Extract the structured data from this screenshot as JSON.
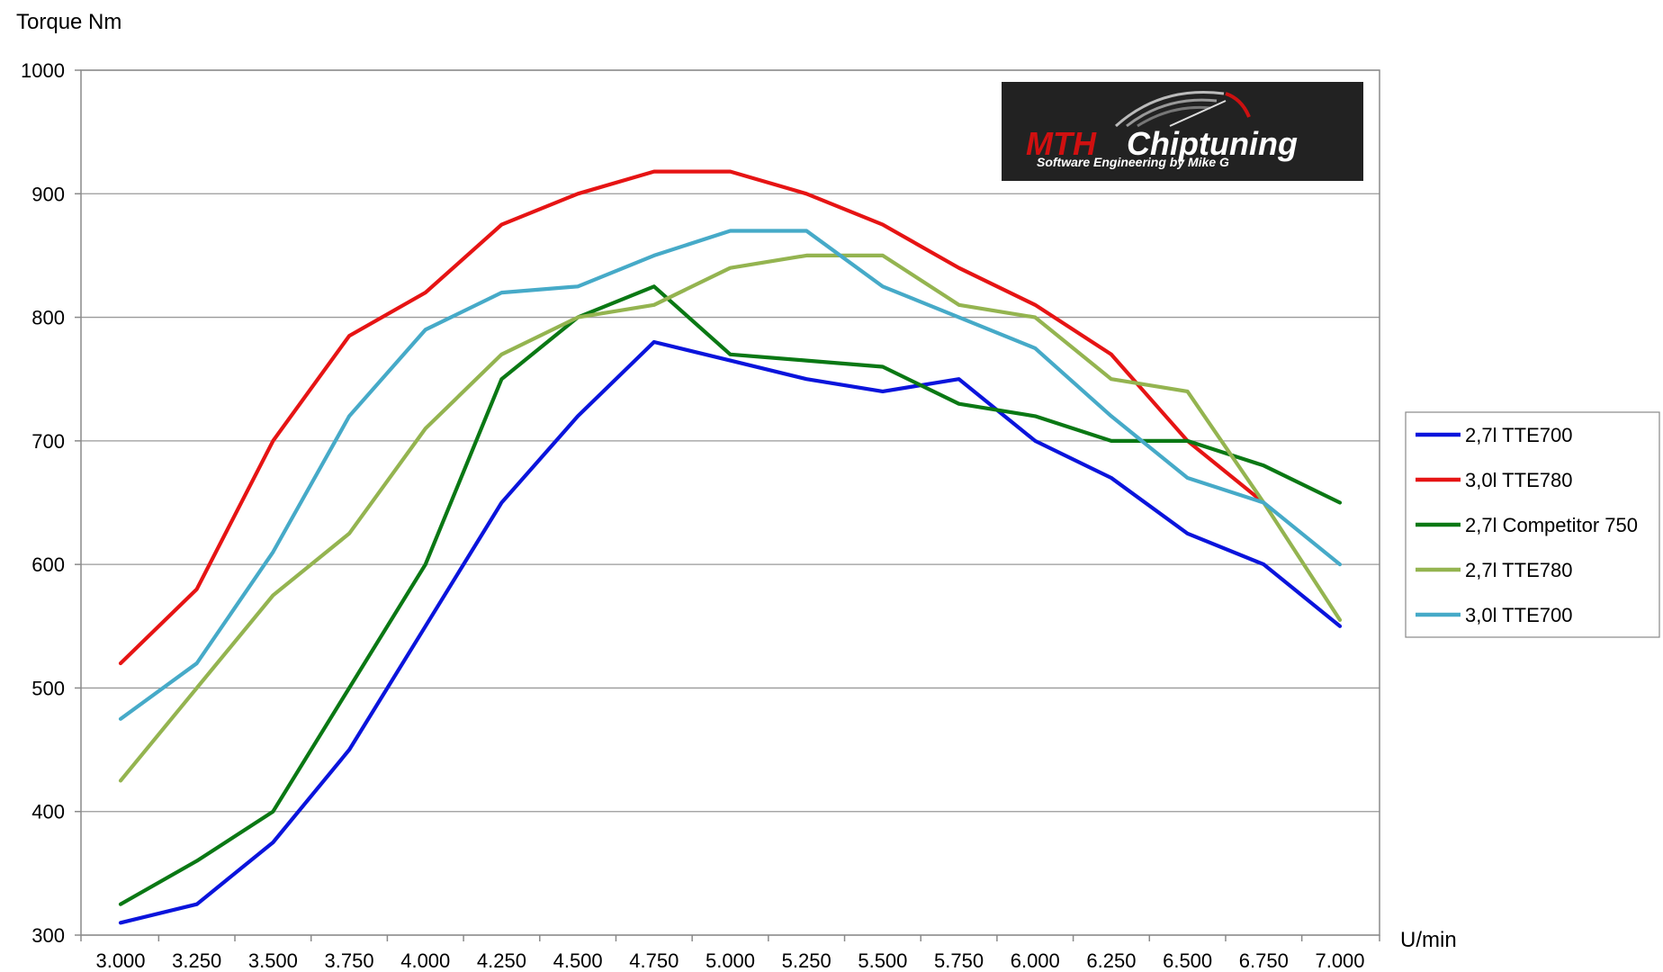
{
  "chart_data": {
    "type": "line",
    "ylabel": "Torque Nm",
    "xlabel": "U/min",
    "ylim": [
      300,
      1000
    ],
    "y_ticks": [
      "300",
      "400",
      "500",
      "600",
      "700",
      "800",
      "900",
      "1000"
    ],
    "y_tick_values": [
      300,
      400,
      500,
      600,
      700,
      800,
      900,
      1000
    ],
    "x": [
      "3.000",
      "3.250",
      "3.500",
      "3.750",
      "4.000",
      "4.250",
      "4.500",
      "4.750",
      "5.000",
      "5.250",
      "5.500",
      "5.750",
      "6.000",
      "6.250",
      "6.500",
      "6.750",
      "7.000"
    ],
    "grid": "horizontal",
    "legend_position": "right",
    "series": [
      {
        "name": "2,7l TTE700",
        "color": "#0a14dc",
        "values": [
          310,
          325,
          375,
          450,
          550,
          650,
          720,
          780,
          765,
          750,
          740,
          750,
          700,
          670,
          625,
          600,
          550
        ]
      },
      {
        "name": "3,0l TTE780",
        "color": "#e61414",
        "values": [
          520,
          580,
          700,
          785,
          820,
          875,
          900,
          918,
          918,
          900,
          875,
          840,
          810,
          770,
          700,
          650,
          null
        ]
      },
      {
        "name": "2,7l Competitor 750",
        "color": "#0a7814",
        "values": [
          325,
          360,
          400,
          500,
          600,
          750,
          800,
          825,
          770,
          765,
          760,
          730,
          720,
          700,
          700,
          680,
          650
        ]
      },
      {
        "name": "2,7l TTE780",
        "color": "#94b450",
        "values": [
          425,
          500,
          575,
          625,
          710,
          770,
          800,
          810,
          840,
          850,
          850,
          810,
          800,
          750,
          740,
          650,
          555
        ]
      },
      {
        "name": "3,0l TTE700",
        "color": "#46aac8",
        "values": [
          475,
          520,
          610,
          720,
          790,
          820,
          825,
          850,
          870,
          870,
          825,
          800,
          775,
          720,
          670,
          650,
          600
        ]
      }
    ]
  },
  "logo": {
    "brand_red": "MTH",
    "brand_white": "Chiptuning",
    "tagline": "Software Engineering  by Mike G"
  }
}
